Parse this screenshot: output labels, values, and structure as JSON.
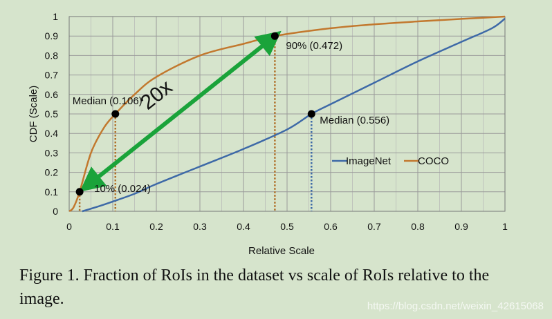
{
  "chart_data": {
    "type": "line",
    "xlabel": "Relative Scale",
    "ylabel": "CDF (Scale)",
    "xlim": [
      0,
      1
    ],
    "ylim": [
      0,
      1
    ],
    "grid": true,
    "legend_position": "center-right",
    "x_ticks": [
      "0",
      "0.1",
      "0.2",
      "0.3",
      "0.4",
      "0.5",
      "0.6",
      "0.7",
      "0.8",
      "0.9",
      "1"
    ],
    "y_ticks": [
      "0",
      "0.1",
      "0.2",
      "0.3",
      "0.4",
      "0.5",
      "0.6",
      "0.7",
      "0.8",
      "0.9",
      "1"
    ],
    "series": [
      {
        "name": "ImageNet",
        "color": "#3d69a7",
        "x": [
          0.03,
          0.06,
          0.1,
          0.15,
          0.2,
          0.3,
          0.4,
          0.5,
          0.556,
          0.6,
          0.7,
          0.8,
          0.9,
          0.97,
          1.0
        ],
        "y": [
          0.0,
          0.02,
          0.05,
          0.09,
          0.14,
          0.23,
          0.32,
          0.42,
          0.5,
          0.55,
          0.66,
          0.77,
          0.87,
          0.94,
          0.99
        ]
      },
      {
        "name": "COCO",
        "color": "#c2782e",
        "x": [
          0.0,
          0.01,
          0.024,
          0.05,
          0.08,
          0.106,
          0.15,
          0.2,
          0.3,
          0.4,
          0.472,
          0.6,
          0.7,
          0.8,
          0.9,
          1.0
        ],
        "y": [
          0.0,
          0.02,
          0.1,
          0.3,
          0.43,
          0.5,
          0.6,
          0.69,
          0.8,
          0.86,
          0.9,
          0.94,
          0.96,
          0.975,
          0.988,
          1.0
        ]
      }
    ],
    "markers": [
      {
        "label": "Median (0.106)",
        "x": 0.106,
        "y": 0.5,
        "series": "COCO"
      },
      {
        "label": "10% (0.024)",
        "x": 0.024,
        "y": 0.1,
        "series": "COCO"
      },
      {
        "label": "90% (0.472)",
        "x": 0.472,
        "y": 0.9,
        "series": "COCO"
      },
      {
        "label": "Median (0.556)",
        "x": 0.556,
        "y": 0.5,
        "series": "ImageNet"
      }
    ],
    "arrow": {
      "label": "20x",
      "from": [
        0.472,
        0.9
      ],
      "to": [
        0.024,
        0.1
      ],
      "color": "#1aa33a"
    }
  },
  "caption": "Figure 1. Fraction of RoIs in the dataset vs scale of RoIs relative to the image.",
  "watermark": "https://blog.csdn.net/weixin_42615068"
}
